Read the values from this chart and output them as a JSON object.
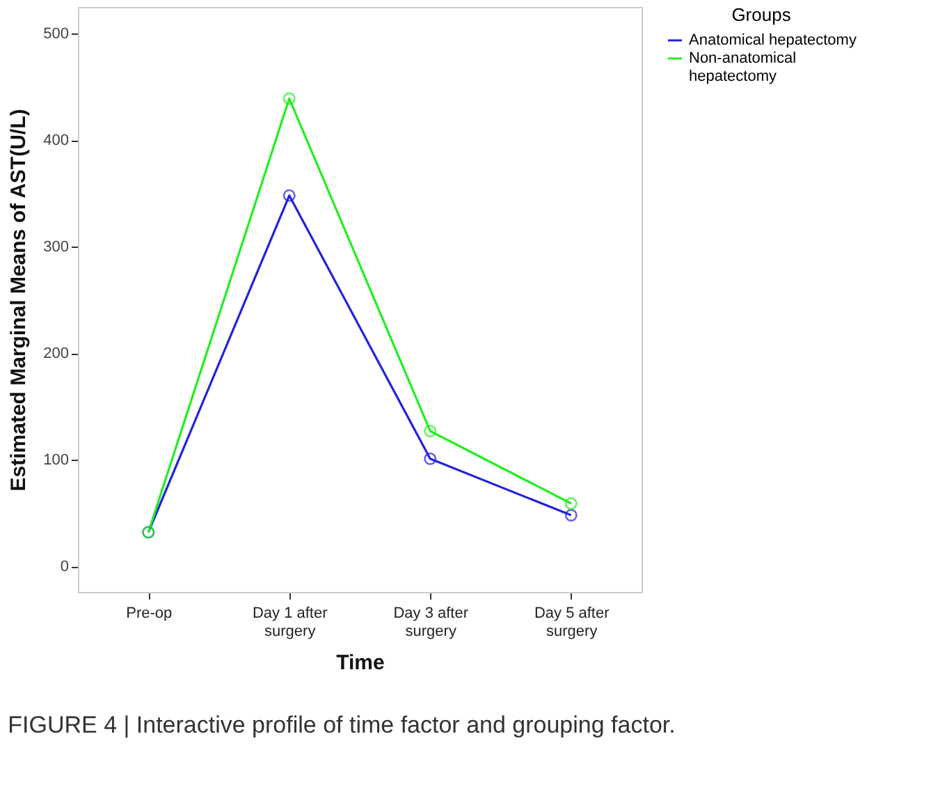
{
  "chart_data": {
    "type": "line",
    "xlabel": "Time",
    "ylabel": "Estimated Marginal Means of AST(U/L)",
    "legend_title": "Groups",
    "categories": [
      "Pre-op",
      "Day 1 after\nsurgery",
      "Day 3 after\nsurgery",
      "Day 5 after\nsurgery"
    ],
    "series": [
      {
        "name": "Anatomical hepatectomy",
        "color": "#2222dd",
        "values": [
          32,
          348,
          101,
          48
        ]
      },
      {
        "name": "Non-anatomical\nhepatectomy",
        "color": "#22ee22",
        "values": [
          32,
          439,
          127,
          59
        ]
      }
    ],
    "ylim": [
      -24,
      525
    ],
    "yticks": [
      0,
      100,
      200,
      300,
      400,
      500
    ],
    "grid": false,
    "legend": "top right",
    "marker": "circle",
    "line_style": "solid",
    "annotations": [
      "FIGURE 4 | Interactive profile of time factor and grouping factor."
    ]
  }
}
